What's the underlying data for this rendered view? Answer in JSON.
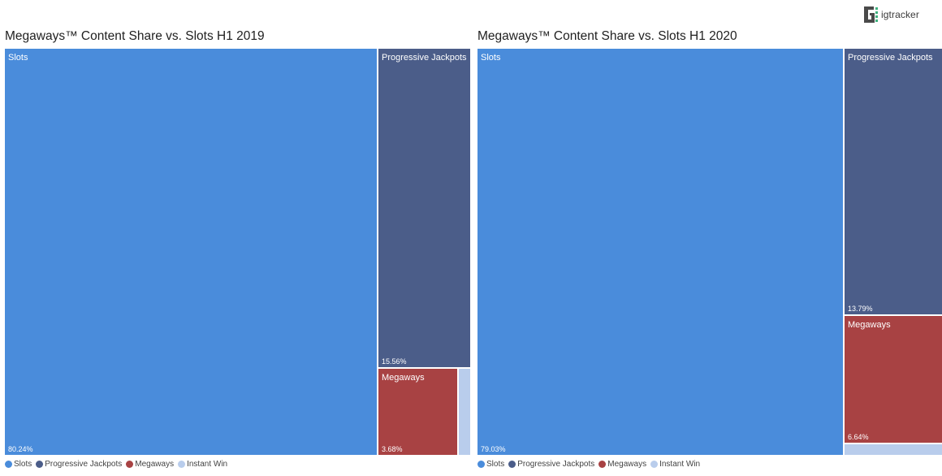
{
  "brand": {
    "name": "igtracker",
    "logo_icon": "igtracker-logo-icon"
  },
  "colors": {
    "Slots": "#4a8cdb",
    "Progressive Jackpots": "#4b5d89",
    "Megaways": "#a84243",
    "Instant Win": "#b9cdec"
  },
  "chart_data": [
    {
      "type": "treemap",
      "title": "Megaways™ Content Share vs. Slots H1 2019",
      "legend": {
        "position": "bottom-left",
        "entries": [
          "Slots",
          "Progressive Jackpots",
          "Megaways",
          "Instant Win"
        ]
      },
      "items": [
        {
          "name": "Slots",
          "value": 80.24,
          "label": "80.24%"
        },
        {
          "name": "Progressive Jackpots",
          "value": 15.56,
          "label": "15.56%"
        },
        {
          "name": "Megaways",
          "value": 3.68,
          "label": "3.68%"
        },
        {
          "name": "Instant Win",
          "value": 0.52
        }
      ]
    },
    {
      "type": "treemap",
      "title": "Megaways™ Content Share vs. Slots H1 2020",
      "legend": {
        "position": "bottom-left",
        "entries": [
          "Slots",
          "Progressive Jackpots",
          "Megaways",
          "Instant Win"
        ]
      },
      "items": [
        {
          "name": "Slots",
          "value": 79.03,
          "label": "79.03%"
        },
        {
          "name": "Progressive Jackpots",
          "value": 13.79,
          "label": "13.79%"
        },
        {
          "name": "Megaways",
          "value": 6.64,
          "label": "6.64%"
        },
        {
          "name": "Instant Win",
          "value": 0.54
        }
      ]
    }
  ]
}
